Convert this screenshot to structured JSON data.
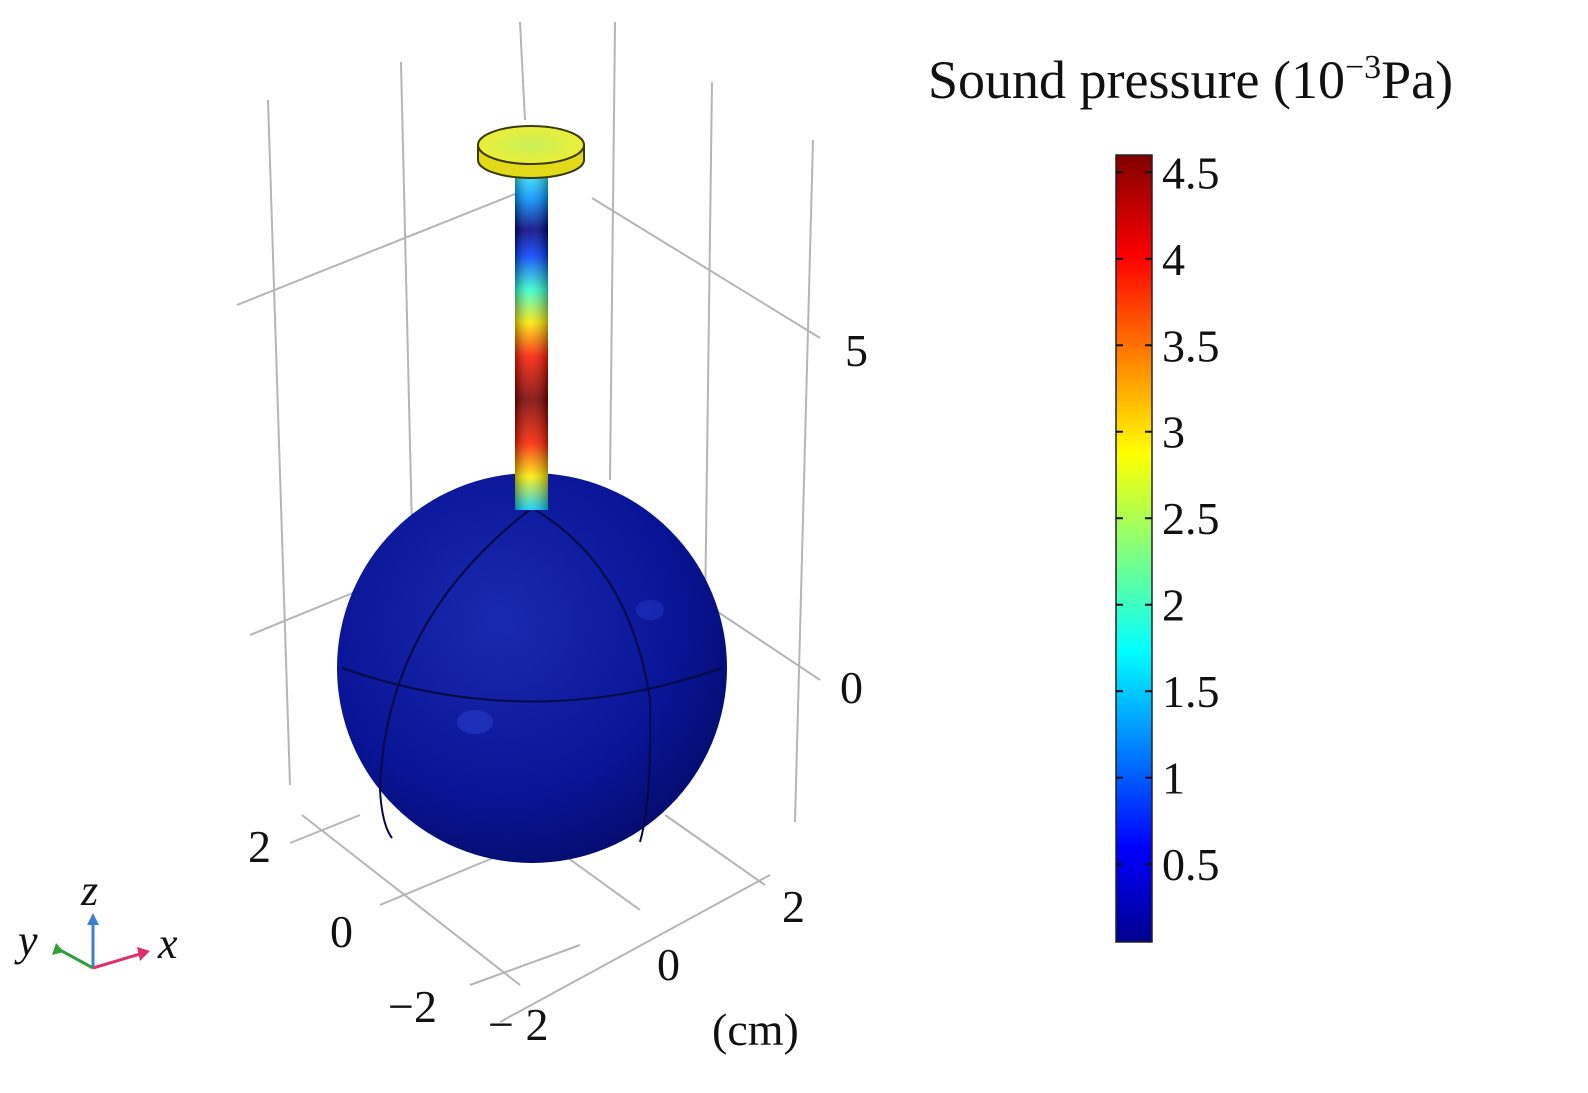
{
  "colorbar": {
    "title_main": "Sound pressure (10",
    "title_exp": "−3",
    "title_unit": "Pa)",
    "ticks": [
      "4.5",
      "4",
      "3.5",
      "3",
      "2.5",
      "2",
      "1.5",
      "1",
      "0.5"
    ],
    "min": 0.05,
    "max": 4.6,
    "colormap": [
      "#00008f",
      "#0000ff",
      "#00ffff",
      "#ffff00",
      "#ff0000",
      "#800000"
    ]
  },
  "axes": {
    "z_ticks": [
      "5",
      "0"
    ],
    "x_ticks": [
      "2",
      "0",
      "− 2"
    ],
    "y_ticks": [
      "2",
      "0",
      "−2"
    ],
    "unit_label": "(cm)"
  },
  "triad": {
    "x": "x",
    "y": "y",
    "z": "z"
  },
  "colors": {
    "sphere": "#0a1496",
    "disc": "#ecec2a",
    "grid": "#b5b5b5",
    "triad_x": "#e0306a",
    "triad_y": "#2e9e3e",
    "triad_z": "#3a7fd0"
  }
}
